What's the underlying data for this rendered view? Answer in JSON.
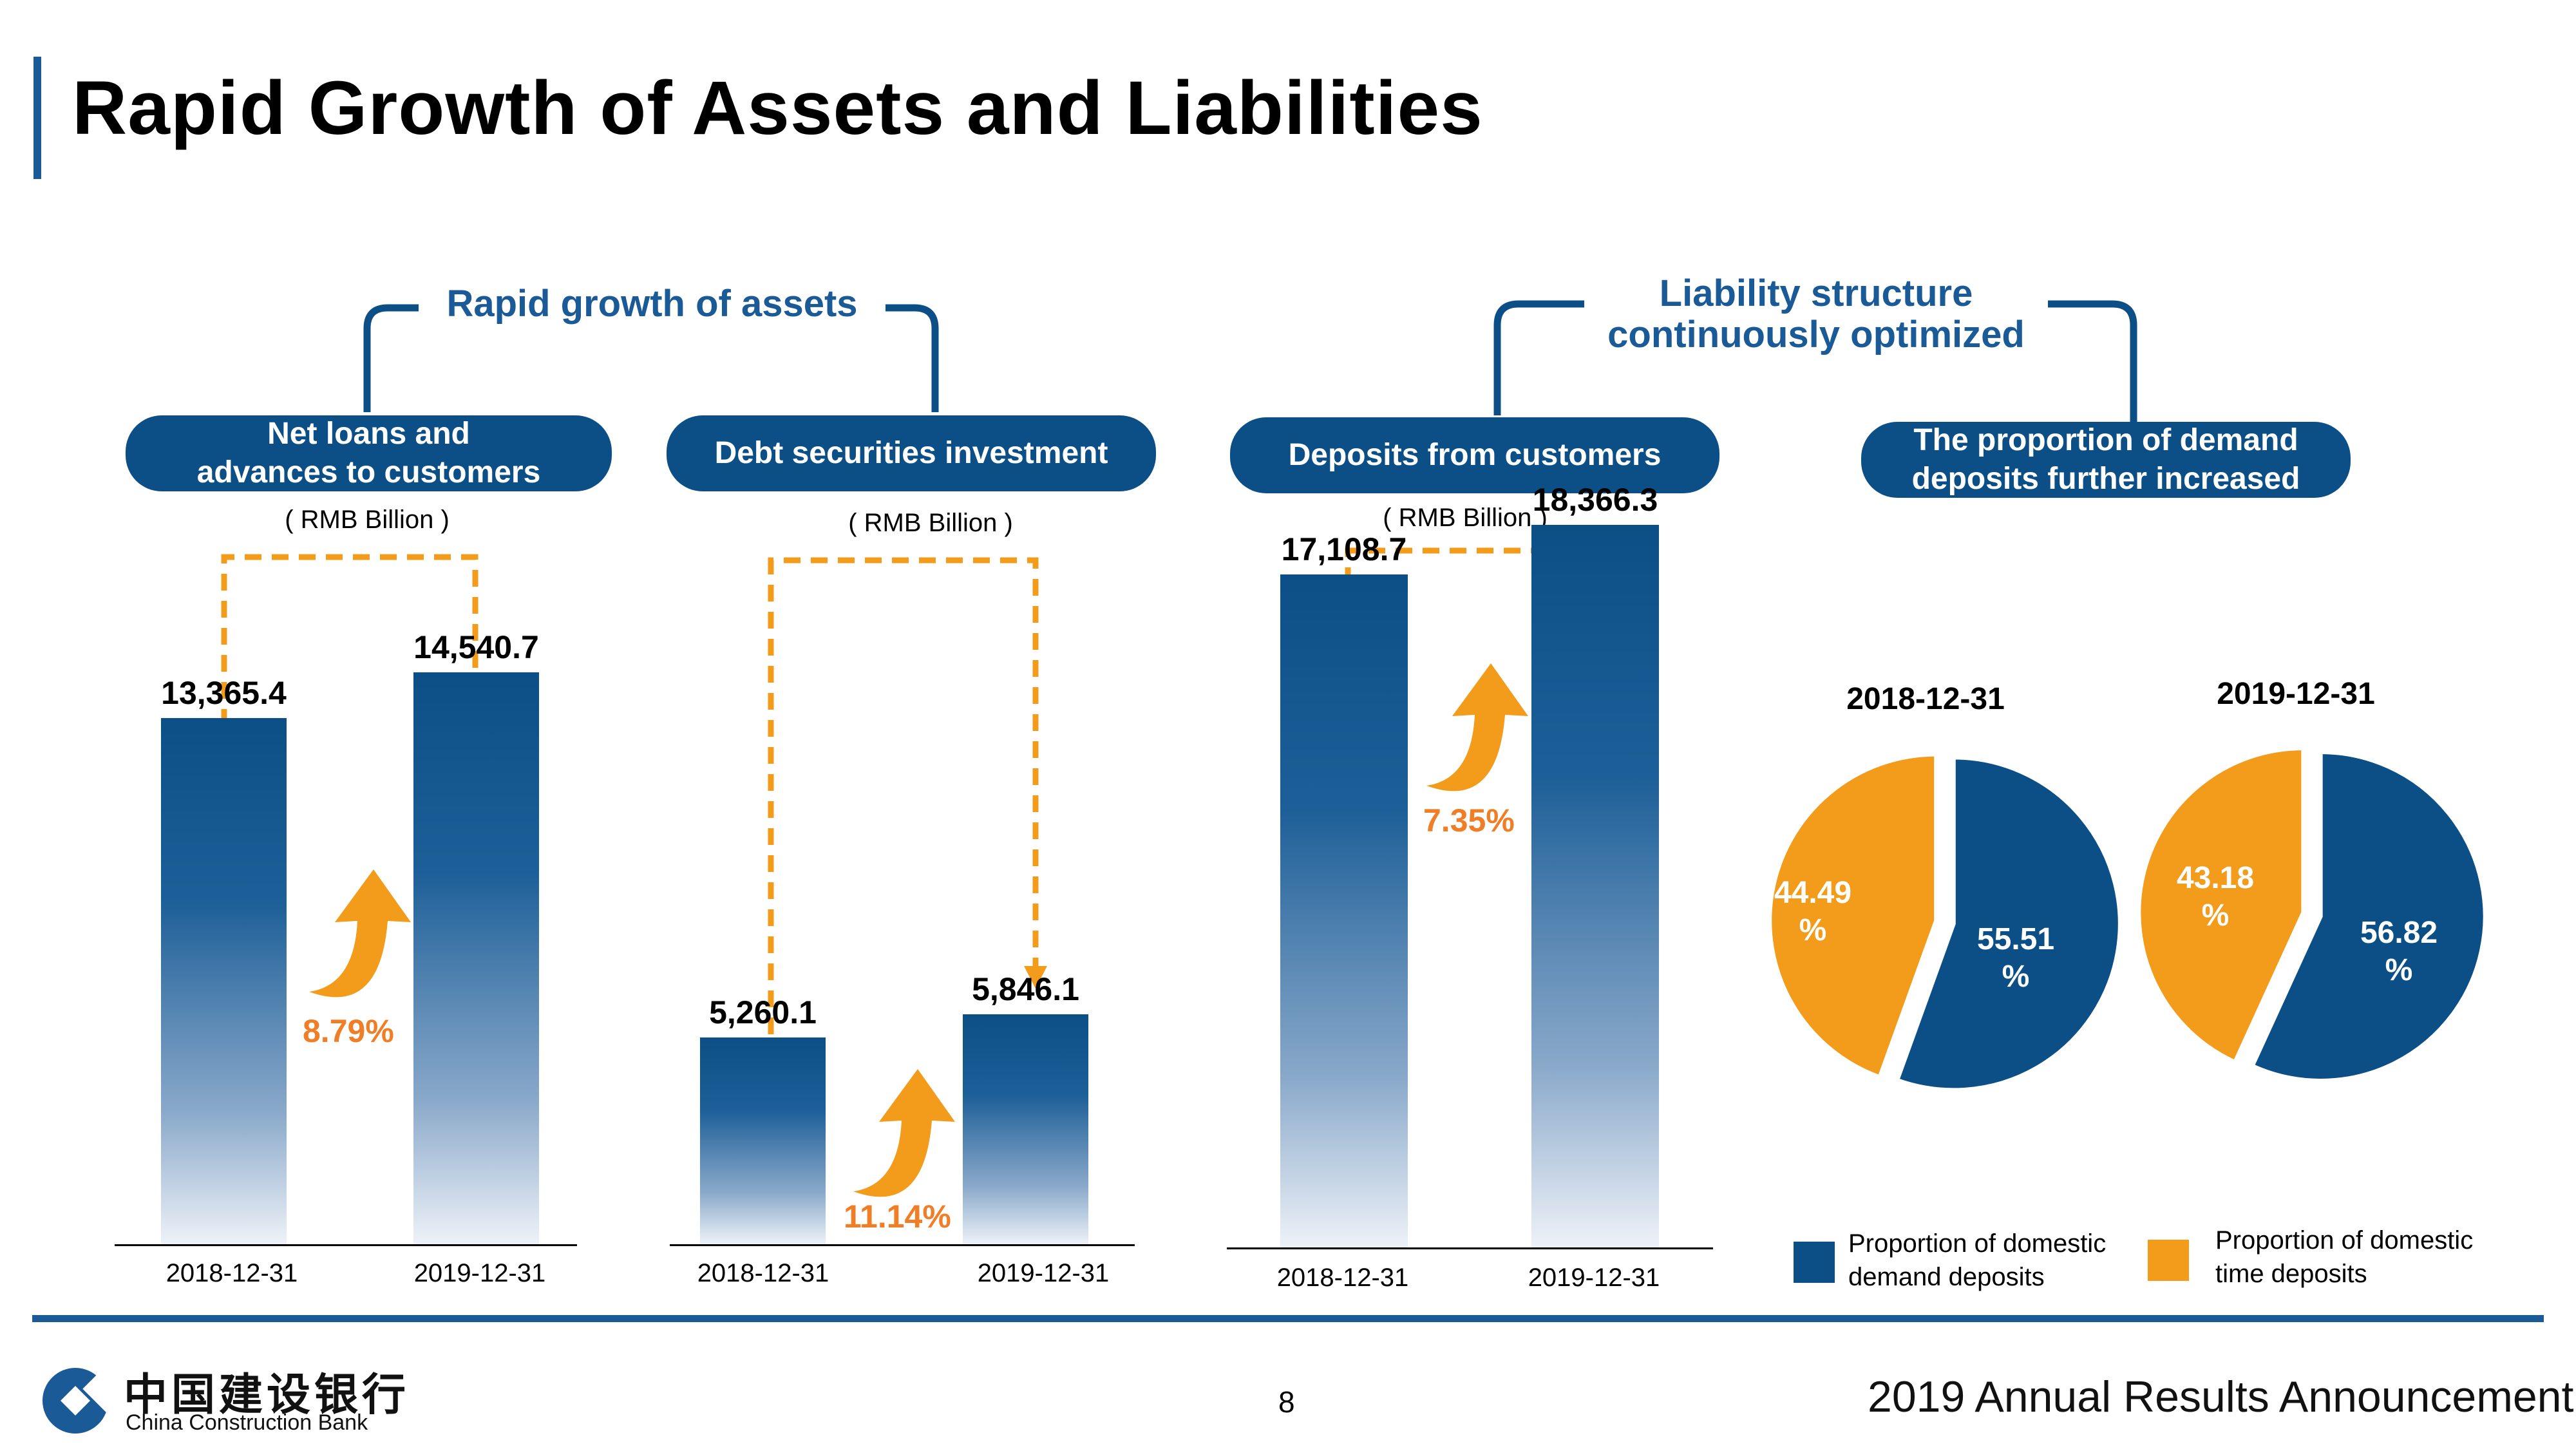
{
  "page": {
    "title": "Rapid Growth of Assets and Liabilities",
    "page_number": "8",
    "footer_right": "2019 Annual Results Announcement",
    "logo_cn": "中国建设银行",
    "logo_en": "China Construction Bank"
  },
  "sections": {
    "assets_title": "Rapid growth of assets",
    "liability_title_line1": "Liability structure",
    "liability_title_line2": "continuously optimized"
  },
  "panels": {
    "loans": {
      "label_line1": "Net loans and",
      "label_line2": "advances to customers",
      "unit": "( RMB Billion )",
      "growth": "8.79%"
    },
    "debt": {
      "label": "Debt securities investment",
      "unit": "( RMB Billion )",
      "growth": "11.14%"
    },
    "deposits": {
      "label": "Deposits from customers",
      "unit": "( RMB Billion )",
      "growth": "7.35%"
    },
    "proportion": {
      "label_line1": "The proportion of demand",
      "label_line2": "deposits further increased"
    }
  },
  "colors": {
    "navy": "#0c4f86",
    "accent_orange": "#f39c1b",
    "growth_orange": "#f07e26",
    "title_blue": "#1a5a96"
  },
  "chart_data": [
    {
      "type": "bar",
      "title": "Net loans and advances to customers",
      "ylabel": "( RMB Billion )",
      "categories": [
        "2018-12-31",
        "2019-12-31"
      ],
      "values": [
        13365.4,
        14540.7
      ],
      "value_labels": [
        "13,365.4",
        "14,540.7"
      ],
      "growth": "8.79%"
    },
    {
      "type": "bar",
      "title": "Debt securities investment",
      "ylabel": "( RMB Billion )",
      "categories": [
        "2018-12-31",
        "2019-12-31"
      ],
      "values": [
        5260.1,
        5846.1
      ],
      "value_labels": [
        "5,260.1",
        "5,846.1"
      ],
      "growth": "11.14%"
    },
    {
      "type": "bar",
      "title": "Deposits from customers",
      "ylabel": "( RMB Billion )",
      "categories": [
        "2018-12-31",
        "2019-12-31"
      ],
      "values": [
        17108.7,
        18366.3
      ],
      "value_labels": [
        "17,108.7",
        "18,366.3"
      ],
      "growth": "7.35%"
    },
    {
      "type": "pie",
      "title": "2018-12-31",
      "slices": [
        {
          "name": "Proportion of domestic demand deposits",
          "value": 55.51,
          "label_line1": "55.51",
          "label_line2": "%"
        },
        {
          "name": "Proportion of domestic time deposits",
          "value": 44.49,
          "label_line1": "44.49",
          "label_line2": "%"
        }
      ]
    },
    {
      "type": "pie",
      "title": "2019-12-31",
      "slices": [
        {
          "name": "Proportion of domestic demand deposits",
          "value": 56.82,
          "label_line1": "56.82",
          "label_line2": "%"
        },
        {
          "name": "Proportion of domestic time deposits",
          "value": 43.18,
          "label_line1": "43.18",
          "label_line2": "%"
        }
      ]
    }
  ],
  "legend": [
    {
      "line1": "Proportion of domestic",
      "line2": "demand deposits",
      "color": "#0c4f86"
    },
    {
      "line1": "Proportion of domestic",
      "line2": "time deposits",
      "color": "#f39c1b"
    }
  ]
}
